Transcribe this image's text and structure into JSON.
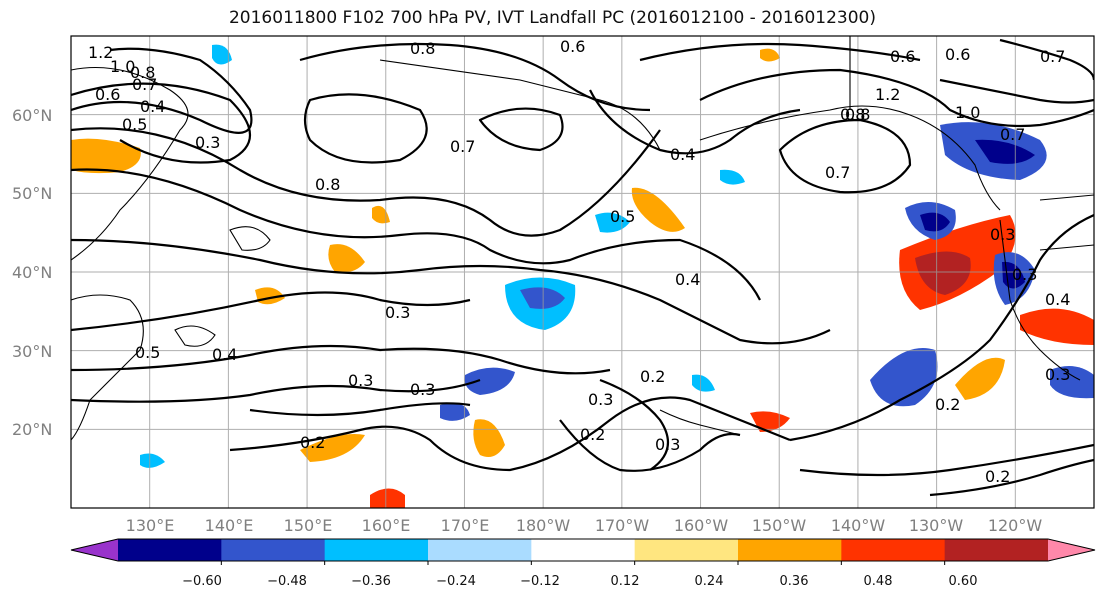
{
  "title": "2016011800 F102 700 hPa PV, IVT Landfall PC (2016012100 - 2016012300)",
  "map": {
    "lat_labels": [
      "60°N",
      "50°N",
      "40°N",
      "30°N",
      "20°N"
    ],
    "lon_labels": [
      "130°E",
      "140°E",
      "150°E",
      "160°E",
      "170°E",
      "180°W",
      "170°W",
      "160°W",
      "150°W",
      "140°W",
      "130°W",
      "120°W"
    ],
    "lat_range": [
      10,
      70
    ],
    "lon_range": [
      120,
      250
    ],
    "gridlines": true
  },
  "colorbar": {
    "colors": [
      "#9933cc",
      "#00008b",
      "#3355cc",
      "#00bfff",
      "#aadcff",
      "#ffffff",
      "#ffe680",
      "#ffa500",
      "#ff3300",
      "#b22222",
      "#ff88aa"
    ],
    "ticks": [
      "−0.60",
      "−0.48",
      "−0.36",
      "−0.24",
      "−0.12",
      "0.12",
      "0.24",
      "0.36",
      "0.48",
      "0.60"
    ],
    "extend": "both"
  },
  "contour_labels": [
    "1.2",
    "1.0",
    "0.8",
    "0.7",
    "0.6",
    "0.4",
    "0.5",
    "0.3",
    "0.8",
    "0.6",
    "0.7",
    "0.8",
    "0.5",
    "0.4",
    "0.3",
    "0.4",
    "0.3",
    "0.2",
    "0.3",
    "0.2",
    "0.3",
    "0.2",
    "0.3",
    "0.6",
    "0.8",
    "0.6",
    "0.7",
    "1.2",
    "1.0",
    "0.8",
    "0.7",
    "0.7",
    "0.3",
    "0.4",
    "0.3",
    "0.2",
    "0.2",
    "0.4",
    "0.5",
    "0.3"
  ]
}
